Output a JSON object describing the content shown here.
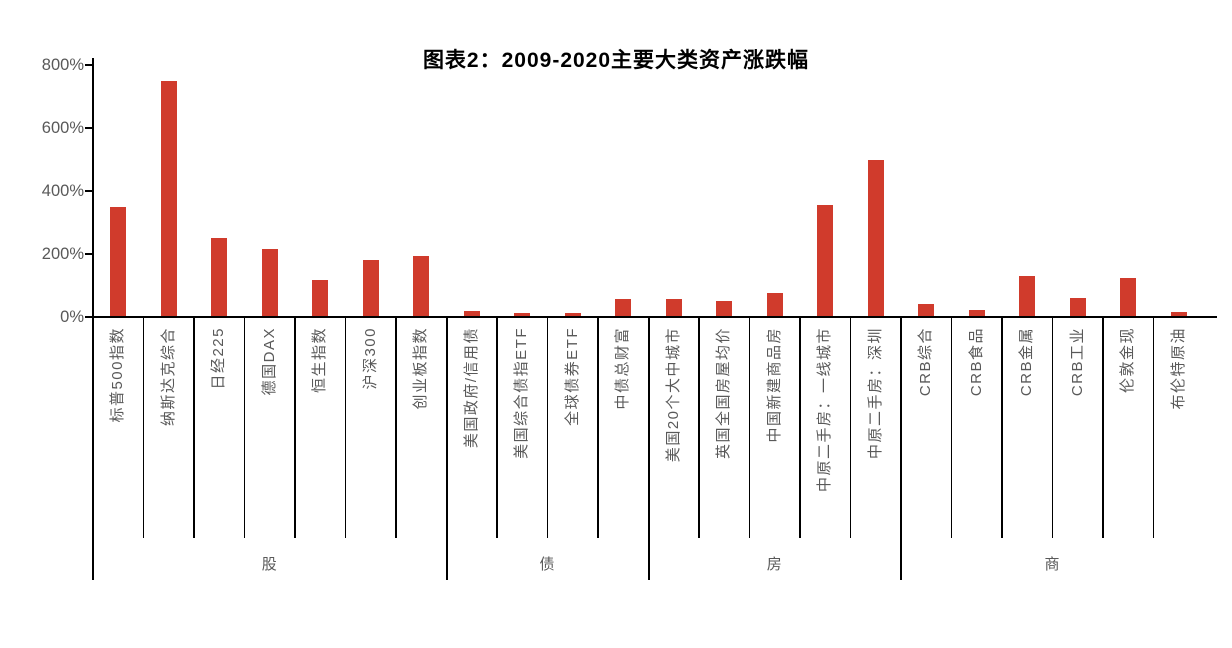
{
  "title": "图表2：2009-2020主要大类资产涨跌幅",
  "colors": {
    "bar": "#d03b2c",
    "axis": "#000000",
    "label_gray": "#595959",
    "title_black": "#000000"
  },
  "y_axis": {
    "unit": "%",
    "min": 0,
    "max": 800,
    "step": 200,
    "tick_labels": [
      "0%",
      "200%",
      "400%",
      "600%",
      "800%"
    ]
  },
  "chart_data": {
    "type": "bar",
    "title": "图表2：2009-2020主要大类资产涨跌幅",
    "ylim": [
      0,
      800
    ],
    "y_tick_labels": [
      "0%",
      "200%",
      "400%",
      "600%",
      "800%"
    ],
    "grid": false,
    "legend": "none",
    "groups": [
      {
        "label": "股",
        "categories": [
          "标普500指数",
          "纳斯达克综合",
          "日经225",
          "德国DAX",
          "恒生指数",
          "沪深300",
          "创业板指数"
        ],
        "values": [
          350,
          750,
          250,
          215,
          118,
          180,
          193
        ]
      },
      {
        "label": "债",
        "categories": [
          "美国政府/信用债",
          "美国综合债指ETF",
          "全球债券ETF",
          "中债总财富"
        ],
        "values": [
          20,
          13,
          13,
          57
        ]
      },
      {
        "label": "房",
        "categories": [
          "美国20个大中城市",
          "英国全国房屋均价",
          "中国新建商品房",
          "中原二手房：一线城市",
          "中原二手房：深圳"
        ],
        "values": [
          57,
          51,
          77,
          355,
          500
        ]
      },
      {
        "label": "商",
        "categories": [
          "CRB综合",
          "CRB食品",
          "CRB金属",
          "CRB工业",
          "伦敦金现",
          "布伦特原油"
        ],
        "values": [
          42,
          22,
          130,
          60,
          123,
          16
        ]
      }
    ]
  }
}
